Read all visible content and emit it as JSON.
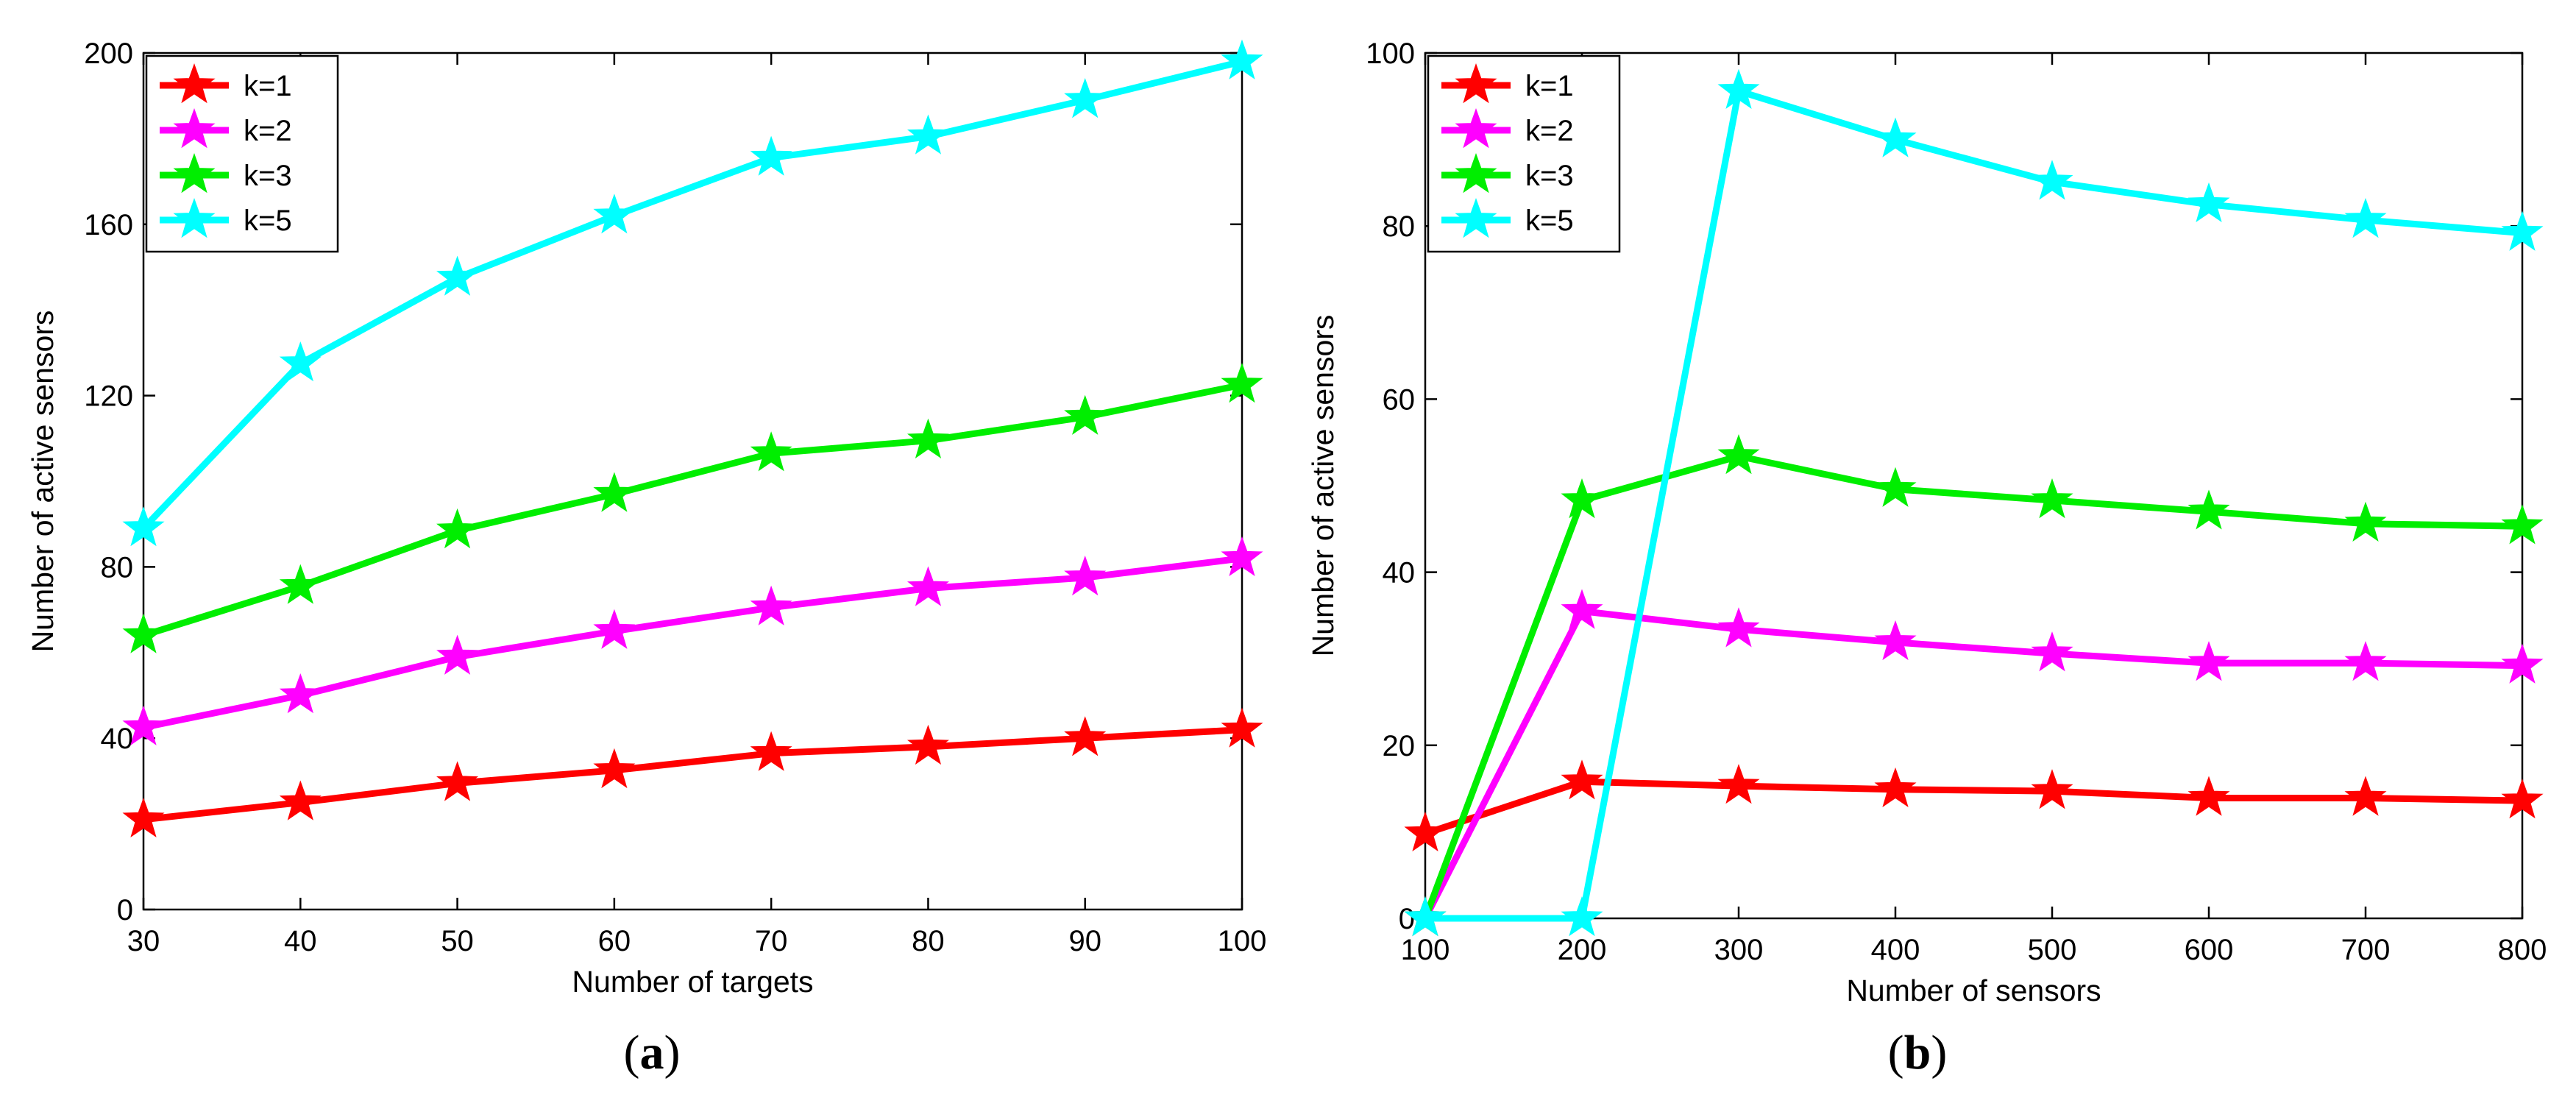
{
  "chart_data": [
    {
      "type": "line",
      "panel_label": "(a)",
      "title": "",
      "xlabel": "Number of targets",
      "ylabel": "Number of active sensors",
      "xlim": [
        30,
        100
      ],
      "ylim": [
        0,
        200
      ],
      "xticks": [
        30,
        40,
        50,
        60,
        70,
        80,
        90,
        100
      ],
      "yticks": [
        0,
        40,
        80,
        120,
        160,
        200
      ],
      "grid": false,
      "legend_position": "top-left",
      "x": [
        30,
        40,
        50,
        60,
        70,
        80,
        90,
        100
      ],
      "series": [
        {
          "name": "k=1",
          "color": "#ff0000",
          "values": [
            21,
            25,
            29.5,
            32.5,
            36.5,
            38,
            40,
            42
          ]
        },
        {
          "name": "k=2",
          "color": "#ff00ff",
          "values": [
            42.5,
            50,
            59,
            65,
            70.5,
            75,
            77.5,
            82
          ]
        },
        {
          "name": "k=3",
          "color": "#00ee00",
          "values": [
            64,
            75.5,
            88.5,
            97,
            106.5,
            109.5,
            115,
            122.5
          ]
        },
        {
          "name": "k=5",
          "color": "#00ffff",
          "values": [
            89,
            127.5,
            147.5,
            162,
            175.5,
            180.5,
            189,
            198
          ]
        }
      ]
    },
    {
      "type": "line",
      "panel_label": "(b)",
      "title": "",
      "xlabel": "Number of sensors",
      "ylabel": "Number of active sensors",
      "xlim": [
        100,
        800
      ],
      "ylim": [
        0,
        100
      ],
      "xticks": [
        100,
        200,
        300,
        400,
        500,
        600,
        700,
        800
      ],
      "yticks": [
        0,
        20,
        40,
        60,
        80,
        100
      ],
      "grid": false,
      "legend_position": "top-left",
      "x": [
        100,
        200,
        300,
        400,
        500,
        600,
        700,
        800
      ],
      "series": [
        {
          "name": "k=1",
          "color": "#ff0000",
          "values": [
            9.8,
            15.8,
            15.3,
            14.9,
            14.7,
            13.9,
            13.9,
            13.6
          ]
        },
        {
          "name": "k=2",
          "color": "#ff00ff",
          "values": [
            0,
            35.5,
            33.4,
            31.9,
            30.6,
            29.5,
            29.5,
            29.2
          ]
        },
        {
          "name": "k=3",
          "color": "#00ee00",
          "values": [
            0,
            48.3,
            53.4,
            49.6,
            48.3,
            47,
            45.6,
            45.3
          ]
        },
        {
          "name": "k=5",
          "color": "#00ffff",
          "values": [
            0,
            0,
            95.6,
            90,
            85.1,
            82.5,
            80.7,
            79.2
          ]
        }
      ]
    }
  ]
}
